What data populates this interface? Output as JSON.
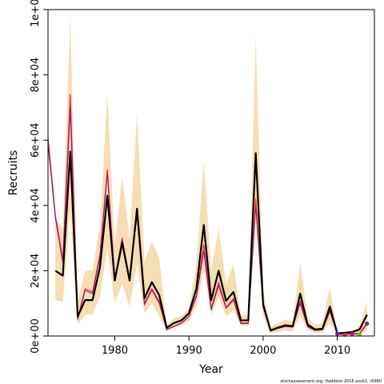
{
  "chart_data": {
    "type": "line",
    "xlabel": "Year",
    "ylabel": "Recruits",
    "credit": "stockassessment.org, Haddock-2016-ass02, r6980",
    "xlim": [
      1971,
      2015
    ],
    "ylim": [
      0,
      100000
    ],
    "x_ticks": [
      1980,
      1990,
      2000,
      2010
    ],
    "y_ticks": [
      0,
      20000,
      40000,
      60000,
      80000,
      100000
    ],
    "y_tick_labels": [
      "0e+00",
      "2e+04",
      "4e+04",
      "6e+04",
      "8e+04",
      "1e+05"
    ],
    "band_color": "#f5deb3",
    "series": [
      {
        "role": "ci_band",
        "x": [
          1972,
          1973,
          1974,
          1975,
          1976,
          1977,
          1978,
          1979,
          1980,
          1981,
          1982,
          1983,
          1984,
          1985,
          1986,
          1987,
          1988,
          1989,
          1990,
          1991,
          1992,
          1993,
          1994,
          1995,
          1996,
          1997,
          1998,
          1999,
          2000,
          2001,
          2002,
          2003,
          2004,
          2005,
          2006,
          2007,
          2008,
          2009,
          2010,
          2011,
          2012,
          2013,
          2014
        ],
        "lower": [
          11000,
          10500,
          38000,
          3500,
          6500,
          6500,
          12000,
          27000,
          10000,
          16000,
          9000,
          22000,
          7000,
          10000,
          6000,
          1800,
          2700,
          3200,
          4500,
          9000,
          20000,
          6500,
          12000,
          6000,
          7800,
          3200,
          3200,
          36000,
          6000,
          800,
          1200,
          1600,
          1400,
          6500,
          1800,
          900,
          1000,
          4000,
          200,
          200,
          200,
          100,
          1800
        ],
        "upper": [
          36000,
          33000,
          98000,
          10500,
          20000,
          20000,
          34000,
          74000,
          28000,
          49000,
          30000,
          68000,
          23000,
          29000,
          24000,
          3200,
          5500,
          6200,
          8500,
          22000,
          54000,
          20000,
          33000,
          16000,
          22000,
          6500,
          6500,
          92000,
          14000,
          2800,
          4000,
          5000,
          4500,
          22500,
          5500,
          3500,
          4000,
          15000,
          1200,
          1300,
          1500,
          3000,
          10500
        ],
        "color": "#f5deb3"
      },
      {
        "role": "estimate",
        "x": [
          1971,
          1972,
          1973,
          1974,
          1975,
          1976,
          1977,
          1978,
          1979,
          1980,
          1981,
          1982,
          1983,
          1984,
          1985,
          1986,
          1987,
          1988,
          1989,
          1990,
          1991,
          1992,
          1993,
          1994,
          1995,
          1996,
          1997,
          1998,
          1999,
          2000,
          2001,
          2002,
          2003,
          2004,
          2005,
          2006,
          2007,
          2008,
          2009,
          2010,
          2011,
          2012,
          2013,
          2014
        ],
        "y": [
          null,
          20000,
          18500,
          56500,
          6000,
          11000,
          11000,
          21000,
          43000,
          17000,
          28500,
          17000,
          39000,
          11500,
          16500,
          12500,
          2500,
          4000,
          4800,
          7000,
          14500,
          34000,
          11000,
          20000,
          10800,
          13500,
          4800,
          4800,
          56000,
          9700,
          1700,
          2600,
          3300,
          3000,
          13000,
          3500,
          2000,
          2200,
          9000,
          800,
          1000,
          1200,
          2000,
          6500
        ],
        "color": "#000000"
      },
      {
        "role": "retro",
        "x": [
          1971,
          1972,
          1973,
          1974,
          1975,
          1976,
          1977,
          1978,
          1979,
          1980,
          1981,
          1982,
          1983,
          1984,
          1985,
          1986,
          1987,
          1988,
          1989,
          1990,
          1991,
          1992,
          1993,
          1994,
          1995,
          1996,
          1997,
          1998,
          1999,
          2000,
          2001,
          2002,
          2003,
          2004,
          2005,
          2006,
          2007,
          2008,
          2009,
          2010,
          2011,
          2012,
          2013,
          2014
        ],
        "y": [
          61000,
          37000,
          23500,
          74000,
          5200,
          14500,
          13500,
          25000,
          51000,
          17500,
          30000,
          17500,
          37000,
          9500,
          14000,
          10000,
          2000,
          3000,
          4000,
          6000,
          12500,
          28000,
          8500,
          16500,
          8800,
          11500,
          4000,
          4000,
          42000,
          9000,
          1600,
          2400,
          3000,
          2800,
          10800,
          3000,
          1800,
          2000,
          7800,
          700,
          600,
          800,
          800,
          4000
        ],
        "color": "#e8204a"
      },
      {
        "role": "retro",
        "x": [
          1971,
          1972,
          1973,
          1974,
          1975,
          1976,
          1977,
          1978,
          1979,
          1980,
          1981,
          1982,
          1983,
          1984,
          1985,
          1986,
          1987,
          1988,
          1989,
          1990,
          1991,
          1992,
          1993,
          1994,
          1995,
          1996,
          1997,
          1998,
          1999,
          2000,
          2001,
          2002,
          2003,
          2004,
          2005,
          2006,
          2007,
          2008,
          2009,
          2010,
          2011,
          2012,
          2013,
          2014
        ],
        "y": [
          59000,
          36000,
          22500,
          70000,
          5000,
          14000,
          13000,
          24000,
          50000,
          17000,
          29500,
          17200,
          37500,
          10000,
          14500,
          10500,
          1900,
          2900,
          3900,
          6000,
          12000,
          26000,
          8000,
          15500,
          8500,
          11000,
          3800,
          3800,
          40000,
          8800,
          1500,
          2300,
          2900,
          2700,
          10000,
          2800,
          1700,
          1900,
          7500,
          600,
          500,
          700,
          600,
          3600
        ],
        "color": "#a0106a"
      },
      {
        "role": "terminal_points",
        "points": [
          {
            "x": 2010,
            "y": 700,
            "color": "#7a1fa2"
          },
          {
            "x": 2011,
            "y": 400,
            "color": "#e8204a"
          },
          {
            "x": 2012,
            "y": 600,
            "color": "#c21875"
          },
          {
            "x": 2013,
            "y": 500,
            "color": "#66cc00"
          },
          {
            "x": 2014,
            "y": 3800,
            "color": "#7a1fa2"
          }
        ]
      }
    ]
  }
}
